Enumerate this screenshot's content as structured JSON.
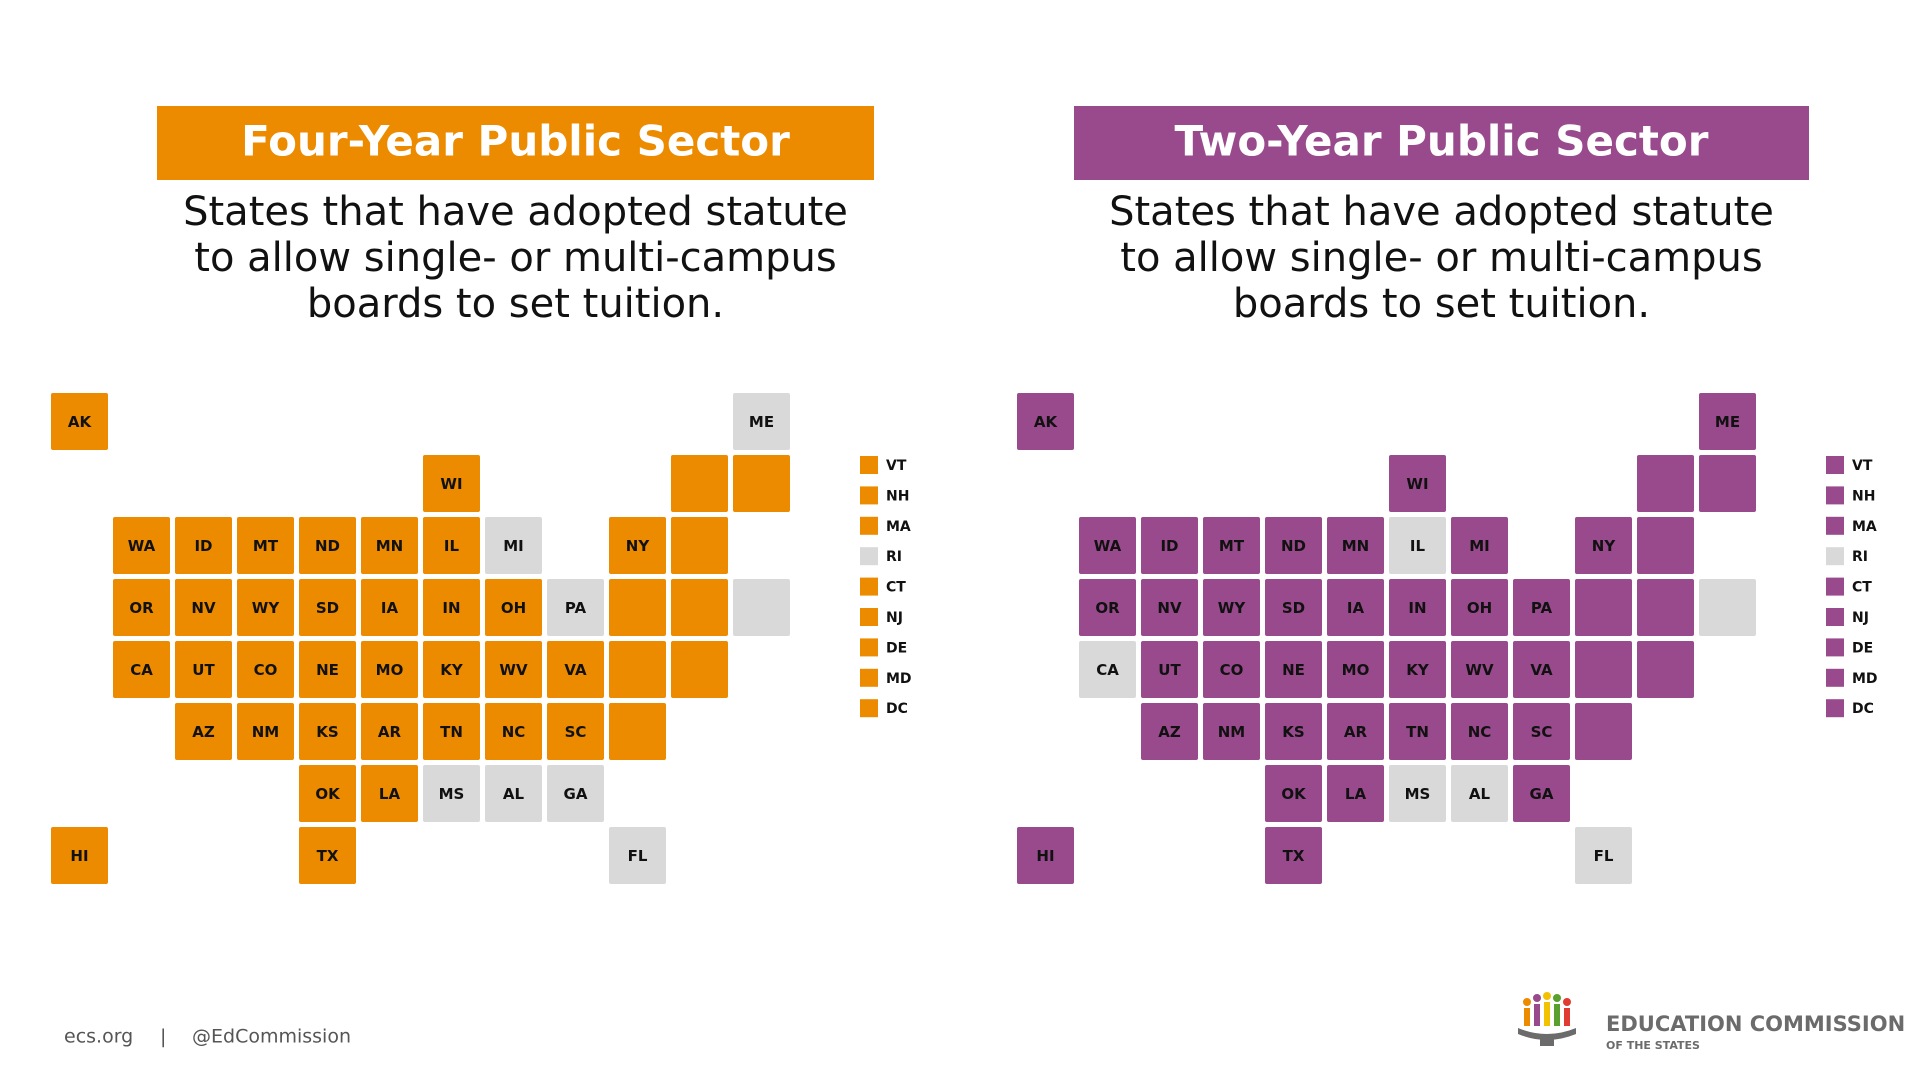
{
  "panels": [
    {
      "title": "Four-Year Public Sector",
      "subtitle": [
        "States that have adopted statute",
        "to allow single- or multi-campus",
        "boards to set tuition."
      ],
      "color": "#ec8b00",
      "not_adopted_color": "#d9d9d9",
      "states": [
        {
          "abbr": "AK",
          "adopted": true
        },
        {
          "abbr": "ME",
          "adopted": false
        },
        {
          "abbr": "WI",
          "adopted": true
        },
        {
          "abbr": "WA",
          "adopted": true
        },
        {
          "abbr": "ID",
          "adopted": true
        },
        {
          "abbr": "MT",
          "adopted": true
        },
        {
          "abbr": "ND",
          "adopted": true
        },
        {
          "abbr": "MN",
          "adopted": true
        },
        {
          "abbr": "IL",
          "adopted": true
        },
        {
          "abbr": "MI",
          "adopted": false
        },
        {
          "abbr": "NY",
          "adopted": true
        },
        {
          "abbr": "OR",
          "adopted": true
        },
        {
          "abbr": "NV",
          "adopted": true
        },
        {
          "abbr": "WY",
          "adopted": true
        },
        {
          "abbr": "SD",
          "adopted": true
        },
        {
          "abbr": "IA",
          "adopted": true
        },
        {
          "abbr": "IN",
          "adopted": true
        },
        {
          "abbr": "OH",
          "adopted": true
        },
        {
          "abbr": "PA",
          "adopted": false
        },
        {
          "abbr": "CA",
          "adopted": true
        },
        {
          "abbr": "UT",
          "adopted": true
        },
        {
          "abbr": "CO",
          "adopted": true
        },
        {
          "abbr": "NE",
          "adopted": true
        },
        {
          "abbr": "MO",
          "adopted": true
        },
        {
          "abbr": "KY",
          "adopted": true
        },
        {
          "abbr": "WV",
          "adopted": true
        },
        {
          "abbr": "VA",
          "adopted": true
        },
        {
          "abbr": "AZ",
          "adopted": true
        },
        {
          "abbr": "NM",
          "adopted": true
        },
        {
          "abbr": "KS",
          "adopted": true
        },
        {
          "abbr": "AR",
          "adopted": true
        },
        {
          "abbr": "TN",
          "adopted": true
        },
        {
          "abbr": "NC",
          "adopted": true
        },
        {
          "abbr": "SC",
          "adopted": true
        },
        {
          "abbr": "OK",
          "adopted": true
        },
        {
          "abbr": "LA",
          "adopted": true
        },
        {
          "abbr": "MS",
          "adopted": false
        },
        {
          "abbr": "AL",
          "adopted": false
        },
        {
          "abbr": "GA",
          "adopted": false
        },
        {
          "abbr": "HI",
          "adopted": true
        },
        {
          "abbr": "TX",
          "adopted": true
        },
        {
          "abbr": "FL",
          "adopted": false
        }
      ],
      "legend": [
        {
          "abbr": "VT",
          "adopted": true
        },
        {
          "abbr": "NH",
          "adopted": true
        },
        {
          "abbr": "MA",
          "adopted": true
        },
        {
          "abbr": "RI",
          "adopted": false
        },
        {
          "abbr": "CT",
          "adopted": true
        },
        {
          "abbr": "NJ",
          "adopted": true
        },
        {
          "abbr": "DE",
          "adopted": true
        },
        {
          "abbr": "MD",
          "adopted": true
        },
        {
          "abbr": "DC",
          "adopted": true
        }
      ]
    },
    {
      "title": "Two-Year Public Sector",
      "subtitle": [
        "States that have adopted statute",
        "to allow single- or multi-campus",
        "boards to set tuition."
      ],
      "color": "#984a8c",
      "not_adopted_color": "#d9d9d9",
      "states": [
        {
          "abbr": "AK",
          "adopted": true
        },
        {
          "abbr": "ME",
          "adopted": true
        },
        {
          "abbr": "WI",
          "adopted": true
        },
        {
          "abbr": "WA",
          "adopted": true
        },
        {
          "abbr": "ID",
          "adopted": true
        },
        {
          "abbr": "MT",
          "adopted": true
        },
        {
          "abbr": "ND",
          "adopted": true
        },
        {
          "abbr": "MN",
          "adopted": true
        },
        {
          "abbr": "IL",
          "adopted": false
        },
        {
          "abbr": "MI",
          "adopted": true
        },
        {
          "abbr": "NY",
          "adopted": true
        },
        {
          "abbr": "OR",
          "adopted": true
        },
        {
          "abbr": "NV",
          "adopted": true
        },
        {
          "abbr": "WY",
          "adopted": true
        },
        {
          "abbr": "SD",
          "adopted": true
        },
        {
          "abbr": "IA",
          "adopted": true
        },
        {
          "abbr": "IN",
          "adopted": true
        },
        {
          "abbr": "OH",
          "adopted": true
        },
        {
          "abbr": "PA",
          "adopted": true
        },
        {
          "abbr": "CA",
          "adopted": false
        },
        {
          "abbr": "UT",
          "adopted": true
        },
        {
          "abbr": "CO",
          "adopted": true
        },
        {
          "abbr": "NE",
          "adopted": true
        },
        {
          "abbr": "MO",
          "adopted": true
        },
        {
          "abbr": "KY",
          "adopted": true
        },
        {
          "abbr": "WV",
          "adopted": true
        },
        {
          "abbr": "VA",
          "adopted": true
        },
        {
          "abbr": "AZ",
          "adopted": true
        },
        {
          "abbr": "NM",
          "adopted": true
        },
        {
          "abbr": "KS",
          "adopted": true
        },
        {
          "abbr": "AR",
          "adopted": true
        },
        {
          "abbr": "TN",
          "adopted": true
        },
        {
          "abbr": "NC",
          "adopted": true
        },
        {
          "abbr": "SC",
          "adopted": true
        },
        {
          "abbr": "OK",
          "adopted": true
        },
        {
          "abbr": "LA",
          "adopted": true
        },
        {
          "abbr": "MS",
          "adopted": false
        },
        {
          "abbr": "AL",
          "adopted": false
        },
        {
          "abbr": "GA",
          "adopted": true
        },
        {
          "abbr": "HI",
          "adopted": true
        },
        {
          "abbr": "TX",
          "adopted": true
        },
        {
          "abbr": "FL",
          "adopted": false
        }
      ],
      "legend": [
        {
          "abbr": "VT",
          "adopted": true
        },
        {
          "abbr": "NH",
          "adopted": true
        },
        {
          "abbr": "MA",
          "adopted": true
        },
        {
          "abbr": "RI",
          "adopted": false
        },
        {
          "abbr": "CT",
          "adopted": true
        },
        {
          "abbr": "NJ",
          "adopted": true
        },
        {
          "abbr": "DE",
          "adopted": true
        },
        {
          "abbr": "MD",
          "adopted": true
        },
        {
          "abbr": "DC",
          "adopted": true
        }
      ]
    }
  ],
  "footer": {
    "site": "ecs.org",
    "separator": "|",
    "handle": "@EdCommission"
  },
  "logo": {
    "name": "EDUCATION COMMISSION",
    "tagline": "OF THE STATES"
  }
}
